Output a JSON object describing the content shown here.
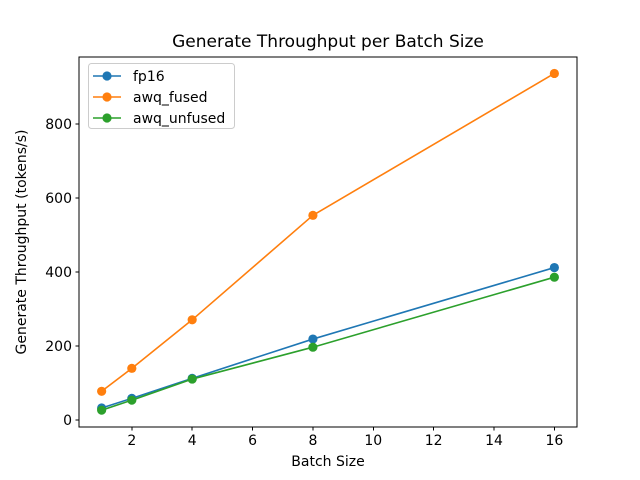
{
  "chart_data": {
    "type": "line",
    "title": "Generate Throughput per Batch Size",
    "xlabel": "Batch Size",
    "ylabel": "Generate Throughput (tokens/s)",
    "x": [
      1,
      2,
      4,
      8,
      16
    ],
    "series": [
      {
        "name": "fp16",
        "color": "#1f77b4",
        "values": [
          33,
          59,
          113,
          219,
          412
        ]
      },
      {
        "name": "awq_fused",
        "color": "#ff7f0e",
        "values": [
          78,
          140,
          271,
          553,
          936
        ]
      },
      {
        "name": "awq_unfused",
        "color": "#2ca02c",
        "values": [
          27,
          54,
          111,
          197,
          386
        ]
      }
    ],
    "xticks": [
      2,
      4,
      6,
      8,
      10,
      12,
      14,
      16
    ],
    "yticks": [
      0,
      200,
      400,
      600,
      800
    ],
    "xlim": [
      0.25,
      16.75
    ],
    "ylim": [
      -18.4,
      980.4
    ],
    "grid": false,
    "legend_position": "upper-left",
    "marker": "circle",
    "colors": {
      "background": "#ffffff",
      "spine": "#000000",
      "legend_border": "#cccccc",
      "legend_fill": "#ffffff"
    }
  }
}
